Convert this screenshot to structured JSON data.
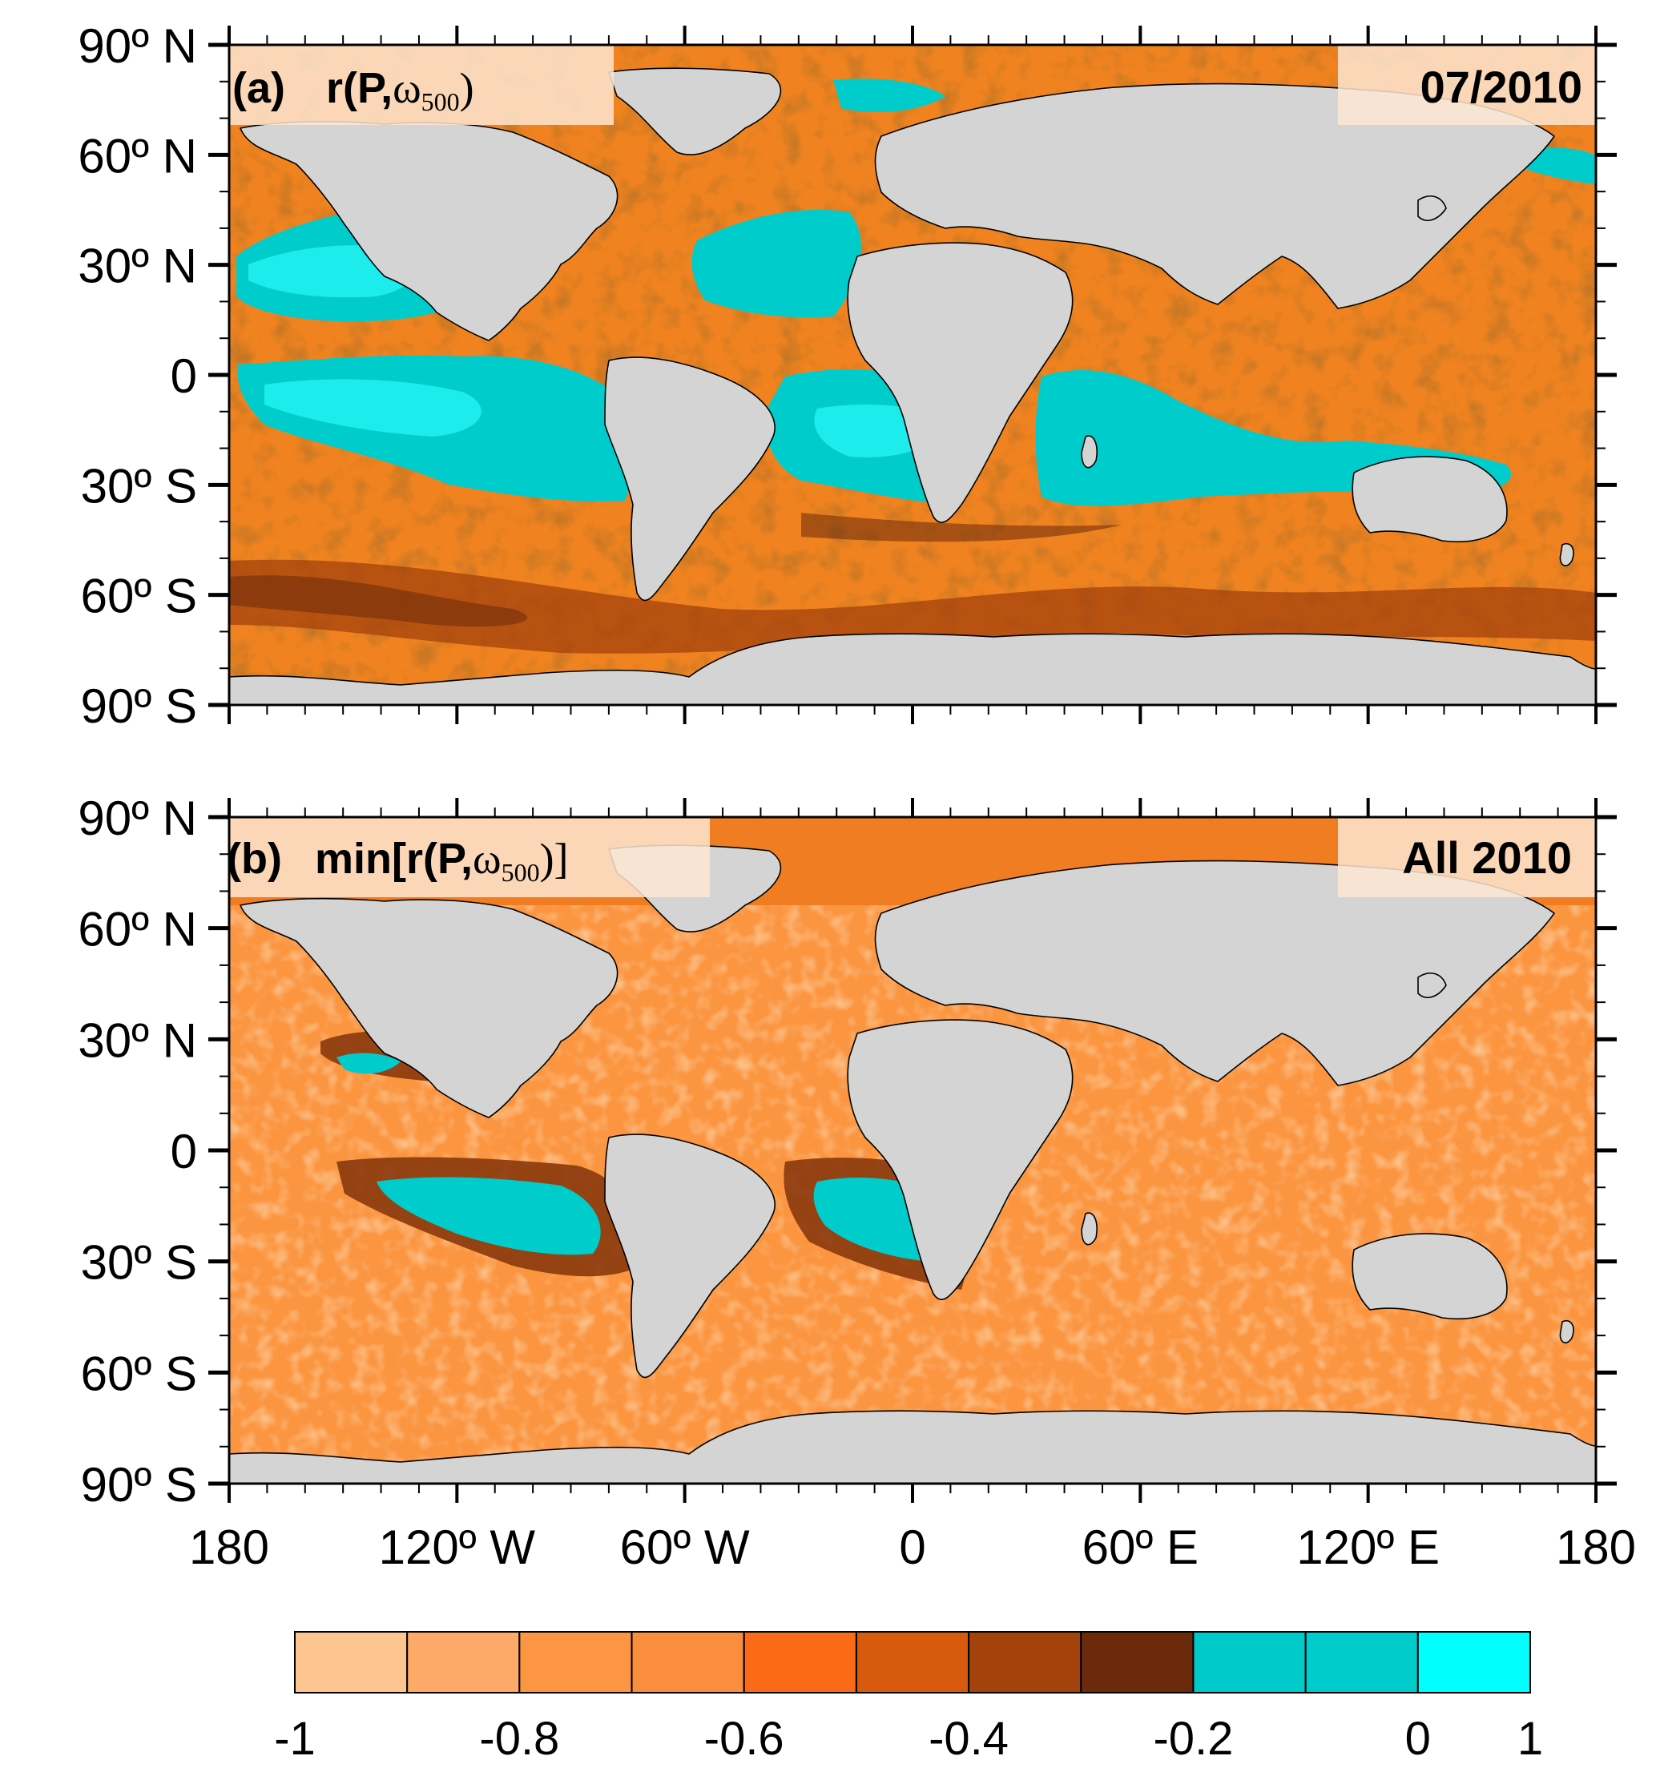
{
  "panels": [
    {
      "id": "a",
      "label": "(a)",
      "title_main": "r(P,",
      "title_omega": "ω",
      "title_sub": "500",
      "title_close": ")",
      "date": "07/2010"
    },
    {
      "id": "b",
      "label": "(b)",
      "title_main": "min[r(P,",
      "title_omega": "ω",
      "title_sub": "500",
      "title_close": ")]",
      "date": "All 2010"
    }
  ],
  "lat_labels": [
    "90º N",
    "60º N",
    "30º N",
    "0",
    "30º S",
    "60º S",
    "90º S"
  ],
  "lon_labels": [
    "180",
    "120º W",
    "60º W",
    "0",
    "60º E",
    "120º E",
    "180"
  ],
  "colorbar": {
    "colors": [
      "#fdc590",
      "#fdaa68",
      "#fc9643",
      "#fb8d3e",
      "#fb6a17",
      "#d85a0c",
      "#a4420c",
      "#6b2a0b",
      "#00c9c9",
      "#00cccc",
      "#00ffff"
    ],
    "labels": [
      "-1",
      "-0.8",
      "-0.6",
      "-0.4",
      "-0.2",
      "0",
      "1"
    ]
  },
  "colors": {
    "land": "#d4d4d4",
    "ocean_orange": "#fb8a2e",
    "ocean_light": "#fc9a45",
    "ocean_dark": "#c8560e",
    "ocean_cyan": "#00cccc",
    "ocean_brightcyan": "#1ff0f0",
    "coast": "#000000"
  }
}
